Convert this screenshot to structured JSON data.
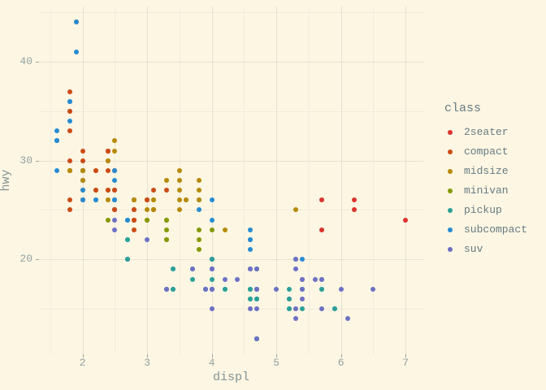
{
  "figure": {
    "background": "#fdf6e3"
  },
  "chart_data": {
    "type": "scatter",
    "title": "",
    "xlabel": "displ",
    "ylabel": "hwy",
    "legend_title": "class",
    "legend_position": "right",
    "grid": true,
    "xlim": [
      1.325,
      7.275
    ],
    "ylim": [
      10.4,
      45.6
    ],
    "x_ticks": [
      2,
      3,
      4,
      5,
      6,
      7
    ],
    "x_minor_ticks": [
      1.5,
      2.5,
      3.5,
      4.5,
      5.5,
      6.5
    ],
    "y_ticks": [
      20,
      30,
      40
    ],
    "y_minor_ticks": [
      15,
      25,
      35,
      45
    ],
    "classes": [
      {
        "name": "2seater",
        "color": "#dc322f"
      },
      {
        "name": "compact",
        "color": "#cb4b16"
      },
      {
        "name": "midsize",
        "color": "#b58900"
      },
      {
        "name": "minivan",
        "color": "#859900"
      },
      {
        "name": "pickup",
        "color": "#2aa198"
      },
      {
        "name": "subcompact",
        "color": "#268bd2"
      },
      {
        "name": "suv",
        "color": "#6c71c4"
      }
    ],
    "points": [
      [
        1.8,
        29,
        "compact"
      ],
      [
        1.8,
        29,
        "compact"
      ],
      [
        2.0,
        31,
        "compact"
      ],
      [
        2.0,
        30,
        "compact"
      ],
      [
        2.8,
        26,
        "compact"
      ],
      [
        2.8,
        26,
        "compact"
      ],
      [
        3.1,
        27,
        "compact"
      ],
      [
        1.8,
        26,
        "compact"
      ],
      [
        1.8,
        25,
        "compact"
      ],
      [
        2.0,
        28,
        "compact"
      ],
      [
        2.0,
        27,
        "compact"
      ],
      [
        2.8,
        25,
        "compact"
      ],
      [
        2.8,
        25,
        "compact"
      ],
      [
        3.1,
        25,
        "compact"
      ],
      [
        3.1,
        25,
        "compact"
      ],
      [
        2.8,
        24,
        "midsize"
      ],
      [
        3.1,
        25,
        "midsize"
      ],
      [
        4.2,
        23,
        "midsize"
      ],
      [
        5.3,
        20,
        "suv"
      ],
      [
        5.3,
        15,
        "suv"
      ],
      [
        5.3,
        20,
        "suv"
      ],
      [
        5.7,
        17,
        "suv"
      ],
      [
        6.0,
        17,
        "suv"
      ],
      [
        5.7,
        26,
        "2seater"
      ],
      [
        5.7,
        23,
        "2seater"
      ],
      [
        6.2,
        26,
        "2seater"
      ],
      [
        6.2,
        25,
        "2seater"
      ],
      [
        7.0,
        24,
        "2seater"
      ],
      [
        5.3,
        14,
        "suv"
      ],
      [
        5.3,
        19,
        "suv"
      ],
      [
        5.7,
        15,
        "suv"
      ],
      [
        6.5,
        17,
        "suv"
      ],
      [
        2.4,
        27,
        "midsize"
      ],
      [
        2.4,
        30,
        "midsize"
      ],
      [
        3.1,
        26,
        "midsize"
      ],
      [
        3.5,
        29,
        "midsize"
      ],
      [
        3.6,
        26,
        "midsize"
      ],
      [
        2.4,
        24,
        "minivan"
      ],
      [
        3.0,
        24,
        "minivan"
      ],
      [
        3.3,
        22,
        "minivan"
      ],
      [
        3.3,
        22,
        "minivan"
      ],
      [
        3.3,
        24,
        "minivan"
      ],
      [
        3.3,
        24,
        "minivan"
      ],
      [
        3.3,
        17,
        "minivan"
      ],
      [
        3.8,
        22,
        "minivan"
      ],
      [
        3.8,
        21,
        "minivan"
      ],
      [
        3.8,
        23,
        "minivan"
      ],
      [
        4.0,
        23,
        "minivan"
      ],
      [
        3.7,
        19,
        "pickup"
      ],
      [
        3.7,
        18,
        "pickup"
      ],
      [
        3.9,
        17,
        "pickup"
      ],
      [
        3.9,
        17,
        "pickup"
      ],
      [
        4.7,
        19,
        "pickup"
      ],
      [
        4.7,
        19,
        "pickup"
      ],
      [
        4.7,
        12,
        "pickup"
      ],
      [
        5.2,
        17,
        "pickup"
      ],
      [
        5.2,
        15,
        "pickup"
      ],
      [
        3.9,
        17,
        "suv"
      ],
      [
        4.7,
        17,
        "suv"
      ],
      [
        4.7,
        12,
        "suv"
      ],
      [
        4.7,
        17,
        "suv"
      ],
      [
        4.7,
        16,
        "suv"
      ],
      [
        5.2,
        16,
        "suv"
      ],
      [
        5.9,
        15,
        "suv"
      ],
      [
        4.7,
        16,
        "pickup"
      ],
      [
        4.7,
        12,
        "pickup"
      ],
      [
        4.7,
        17,
        "pickup"
      ],
      [
        4.7,
        17,
        "pickup"
      ],
      [
        4.7,
        16,
        "pickup"
      ],
      [
        4.7,
        12,
        "pickup"
      ],
      [
        5.2,
        15,
        "pickup"
      ],
      [
        5.2,
        16,
        "pickup"
      ],
      [
        5.7,
        17,
        "pickup"
      ],
      [
        5.9,
        15,
        "pickup"
      ],
      [
        4.6,
        17,
        "suv"
      ],
      [
        5.4,
        17,
        "suv"
      ],
      [
        5.4,
        18,
        "suv"
      ],
      [
        4.0,
        17,
        "suv"
      ],
      [
        4.0,
        19,
        "suv"
      ],
      [
        4.0,
        17,
        "suv"
      ],
      [
        4.0,
        19,
        "suv"
      ],
      [
        4.0,
        17,
        "suv"
      ],
      [
        4.6,
        19,
        "suv"
      ],
      [
        4.2,
        17,
        "pickup"
      ],
      [
        4.2,
        17,
        "pickup"
      ],
      [
        4.6,
        16,
        "pickup"
      ],
      [
        4.6,
        16,
        "pickup"
      ],
      [
        4.6,
        17,
        "pickup"
      ],
      [
        5.4,
        15,
        "pickup"
      ],
      [
        5.4,
        17,
        "pickup"
      ],
      [
        3.8,
        26,
        "subcompact"
      ],
      [
        3.8,
        25,
        "subcompact"
      ],
      [
        4.0,
        26,
        "subcompact"
      ],
      [
        4.0,
        24,
        "subcompact"
      ],
      [
        4.6,
        21,
        "subcompact"
      ],
      [
        4.6,
        22,
        "subcompact"
      ],
      [
        4.6,
        23,
        "subcompact"
      ],
      [
        4.6,
        22,
        "subcompact"
      ],
      [
        5.4,
        20,
        "subcompact"
      ],
      [
        1.6,
        33,
        "subcompact"
      ],
      [
        1.6,
        32,
        "subcompact"
      ],
      [
        1.6,
        32,
        "subcompact"
      ],
      [
        1.6,
        29,
        "subcompact"
      ],
      [
        1.6,
        32,
        "subcompact"
      ],
      [
        1.8,
        34,
        "subcompact"
      ],
      [
        1.8,
        36,
        "subcompact"
      ],
      [
        1.8,
        36,
        "subcompact"
      ],
      [
        2.0,
        29,
        "subcompact"
      ],
      [
        2.4,
        26,
        "midsize"
      ],
      [
        2.4,
        27,
        "midsize"
      ],
      [
        2.4,
        30,
        "midsize"
      ],
      [
        2.4,
        31,
        "midsize"
      ],
      [
        2.5,
        26,
        "midsize"
      ],
      [
        2.5,
        26,
        "midsize"
      ],
      [
        3.3,
        28,
        "midsize"
      ],
      [
        2.0,
        26,
        "subcompact"
      ],
      [
        2.0,
        29,
        "subcompact"
      ],
      [
        2.0,
        28,
        "subcompact"
      ],
      [
        2.0,
        27,
        "subcompact"
      ],
      [
        2.7,
        24,
        "subcompact"
      ],
      [
        2.7,
        24,
        "subcompact"
      ],
      [
        2.7,
        24,
        "subcompact"
      ],
      [
        3.0,
        22,
        "suv"
      ],
      [
        3.7,
        19,
        "suv"
      ],
      [
        4.0,
        20,
        "suv"
      ],
      [
        4.7,
        17,
        "suv"
      ],
      [
        4.7,
        12,
        "suv"
      ],
      [
        4.7,
        19,
        "suv"
      ],
      [
        5.7,
        18,
        "suv"
      ],
      [
        6.1,
        14,
        "suv"
      ],
      [
        4.0,
        15,
        "suv"
      ],
      [
        4.2,
        18,
        "suv"
      ],
      [
        4.4,
        18,
        "suv"
      ],
      [
        4.6,
        15,
        "suv"
      ],
      [
        5.4,
        17,
        "suv"
      ],
      [
        5.4,
        16,
        "suv"
      ],
      [
        5.4,
        18,
        "suv"
      ],
      [
        4.0,
        17,
        "suv"
      ],
      [
        4.0,
        19,
        "suv"
      ],
      [
        4.6,
        19,
        "suv"
      ],
      [
        5.0,
        17,
        "suv"
      ],
      [
        2.4,
        29,
        "compact"
      ],
      [
        2.4,
        27,
        "compact"
      ],
      [
        2.5,
        31,
        "midsize"
      ],
      [
        2.5,
        32,
        "midsize"
      ],
      [
        3.5,
        27,
        "midsize"
      ],
      [
        3.5,
        26,
        "midsize"
      ],
      [
        3.0,
        26,
        "midsize"
      ],
      [
        3.0,
        25,
        "midsize"
      ],
      [
        3.5,
        25,
        "midsize"
      ],
      [
        3.3,
        17,
        "suv"
      ],
      [
        3.3,
        17,
        "suv"
      ],
      [
        4.0,
        20,
        "suv"
      ],
      [
        5.6,
        18,
        "suv"
      ],
      [
        3.1,
        26,
        "midsize"
      ],
      [
        3.8,
        26,
        "midsize"
      ],
      [
        3.8,
        27,
        "midsize"
      ],
      [
        3.8,
        28,
        "midsize"
      ],
      [
        5.3,
        25,
        "midsize"
      ],
      [
        2.5,
        25,
        "suv"
      ],
      [
        2.5,
        24,
        "suv"
      ],
      [
        2.5,
        27,
        "suv"
      ],
      [
        2.5,
        25,
        "suv"
      ],
      [
        2.5,
        26,
        "suv"
      ],
      [
        2.5,
        23,
        "suv"
      ],
      [
        2.2,
        26,
        "subcompact"
      ],
      [
        2.2,
        26,
        "subcompact"
      ],
      [
        2.5,
        26,
        "subcompact"
      ],
      [
        2.5,
        26,
        "subcompact"
      ],
      [
        2.5,
        25,
        "compact"
      ],
      [
        2.5,
        27,
        "compact"
      ],
      [
        2.5,
        25,
        "compact"
      ],
      [
        2.5,
        27,
        "compact"
      ],
      [
        2.7,
        20,
        "suv"
      ],
      [
        2.7,
        20,
        "suv"
      ],
      [
        3.4,
        19,
        "suv"
      ],
      [
        3.4,
        17,
        "suv"
      ],
      [
        4.0,
        20,
        "suv"
      ],
      [
        4.7,
        17,
        "suv"
      ],
      [
        2.2,
        29,
        "midsize"
      ],
      [
        2.2,
        27,
        "midsize"
      ],
      [
        2.4,
        31,
        "midsize"
      ],
      [
        2.4,
        31,
        "midsize"
      ],
      [
        3.0,
        26,
        "midsize"
      ],
      [
        3.0,
        26,
        "midsize"
      ],
      [
        3.5,
        28,
        "midsize"
      ],
      [
        2.2,
        27,
        "compact"
      ],
      [
        2.2,
        29,
        "compact"
      ],
      [
        2.4,
        31,
        "compact"
      ],
      [
        2.4,
        31,
        "compact"
      ],
      [
        3.0,
        26,
        "compact"
      ],
      [
        3.0,
        26,
        "compact"
      ],
      [
        3.3,
        27,
        "compact"
      ],
      [
        1.8,
        30,
        "compact"
      ],
      [
        1.8,
        33,
        "compact"
      ],
      [
        1.8,
        35,
        "compact"
      ],
      [
        1.8,
        37,
        "compact"
      ],
      [
        1.8,
        35,
        "compact"
      ],
      [
        4.7,
        15,
        "suv"
      ],
      [
        5.7,
        18,
        "suv"
      ],
      [
        3.0,
        24,
        "minivan"
      ],
      [
        3.3,
        23,
        "minivan"
      ],
      [
        2.7,
        22,
        "pickup"
      ],
      [
        2.7,
        20,
        "pickup"
      ],
      [
        2.7,
        22,
        "pickup"
      ],
      [
        3.4,
        17,
        "pickup"
      ],
      [
        3.4,
        19,
        "pickup"
      ],
      [
        4.0,
        18,
        "pickup"
      ],
      [
        4.0,
        20,
        "pickup"
      ],
      [
        2.0,
        29,
        "compact"
      ],
      [
        2.0,
        26,
        "compact"
      ],
      [
        2.0,
        29,
        "compact"
      ],
      [
        2.0,
        29,
        "compact"
      ],
      [
        2.8,
        24,
        "compact"
      ],
      [
        1.9,
        44,
        "compact"
      ],
      [
        2.0,
        29,
        "compact"
      ],
      [
        2.0,
        26,
        "compact"
      ],
      [
        2.0,
        29,
        "compact"
      ],
      [
        2.0,
        29,
        "compact"
      ],
      [
        2.5,
        29,
        "compact"
      ],
      [
        2.5,
        29,
        "compact"
      ],
      [
        2.8,
        23,
        "compact"
      ],
      [
        2.8,
        24,
        "compact"
      ],
      [
        1.9,
        44,
        "subcompact"
      ],
      [
        1.9,
        41,
        "subcompact"
      ],
      [
        2.0,
        29,
        "subcompact"
      ],
      [
        2.0,
        26,
        "subcompact"
      ],
      [
        2.5,
        28,
        "subcompact"
      ],
      [
        2.5,
        29,
        "subcompact"
      ],
      [
        1.8,
        29,
        "midsize"
      ],
      [
        1.8,
        29,
        "midsize"
      ],
      [
        2.0,
        28,
        "midsize"
      ],
      [
        2.0,
        29,
        "midsize"
      ],
      [
        2.8,
        26,
        "midsize"
      ],
      [
        2.8,
        26,
        "midsize"
      ],
      [
        3.6,
        26,
        "midsize"
      ]
    ]
  }
}
